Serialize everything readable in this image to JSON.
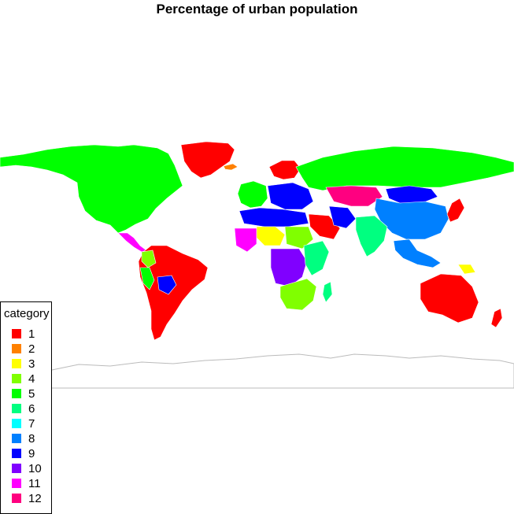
{
  "title": "Percentage of urban population",
  "legend": {
    "title": "category",
    "items": [
      {
        "label": "1",
        "color": "#ff0000"
      },
      {
        "label": "2",
        "color": "#ff8000"
      },
      {
        "label": "3",
        "color": "#ffff00"
      },
      {
        "label": "4",
        "color": "#80ff00"
      },
      {
        "label": "5",
        "color": "#00ff00"
      },
      {
        "label": "6",
        "color": "#00ff80"
      },
      {
        "label": "7",
        "color": "#00ffff"
      },
      {
        "label": "8",
        "color": "#0080ff"
      },
      {
        "label": "9",
        "color": "#0000ff"
      },
      {
        "label": "10",
        "color": "#8000ff"
      },
      {
        "label": "11",
        "color": "#ff00ff"
      },
      {
        "label": "12",
        "color": "#ff0080"
      }
    ]
  },
  "regions": [
    {
      "id": "north-america",
      "category": "5"
    },
    {
      "id": "greenland",
      "category": "1"
    },
    {
      "id": "iceland",
      "category": "2"
    },
    {
      "id": "central-america",
      "category": "11"
    },
    {
      "id": "south-america",
      "category": "1"
    },
    {
      "id": "bolivia",
      "category": "9"
    },
    {
      "id": "colombia",
      "category": "4"
    },
    {
      "id": "peru",
      "category": "5"
    },
    {
      "id": "europe-west",
      "category": "5"
    },
    {
      "id": "scandinavia",
      "category": "1"
    },
    {
      "id": "eastern-europe",
      "category": "9"
    },
    {
      "id": "russia",
      "category": "5"
    },
    {
      "id": "kazakhstan",
      "category": "12"
    },
    {
      "id": "mongolia",
      "category": "9"
    },
    {
      "id": "china",
      "category": "8"
    },
    {
      "id": "japan",
      "category": "1"
    },
    {
      "id": "middle-east",
      "category": "1"
    },
    {
      "id": "iran",
      "category": "9"
    },
    {
      "id": "india",
      "category": "6"
    },
    {
      "id": "southeast-asia",
      "category": "8"
    },
    {
      "id": "north-africa",
      "category": "9"
    },
    {
      "id": "sahel",
      "category": "3"
    },
    {
      "id": "sudan",
      "category": "4"
    },
    {
      "id": "west-africa",
      "category": "11"
    },
    {
      "id": "central-africa",
      "category": "10"
    },
    {
      "id": "east-africa",
      "category": "6"
    },
    {
      "id": "southern-africa",
      "category": "4"
    },
    {
      "id": "madagascar",
      "category": "6"
    },
    {
      "id": "australia",
      "category": "1"
    },
    {
      "id": "new-guinea",
      "category": "3"
    },
    {
      "id": "new-zealand",
      "category": "1"
    }
  ]
}
